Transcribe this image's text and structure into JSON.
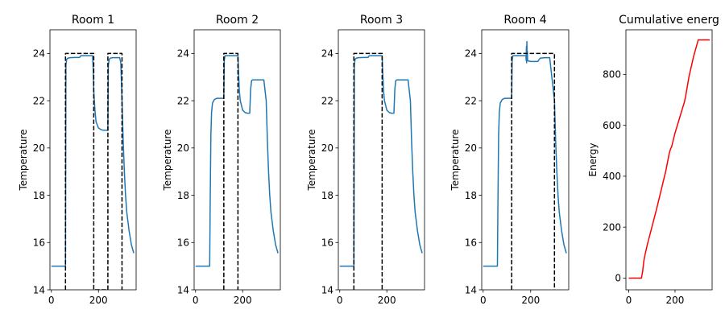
{
  "chart_data": [
    {
      "type": "line",
      "title": "Room 1",
      "xlabel": "",
      "ylabel": "Temperature",
      "xlim": [
        -6,
        360
      ],
      "ylim": [
        14,
        25
      ],
      "xticks": [
        0,
        200
      ],
      "yticks": [
        14,
        16,
        18,
        20,
        22,
        24
      ],
      "grid": false,
      "series": [
        {
          "role": "temperature",
          "color": "#1f77b4",
          "style": "solid",
          "x": [
            0,
            60,
            62,
            65,
            70,
            80,
            100,
            120,
            125,
            175,
            178,
            180,
            185,
            190,
            200,
            210,
            220,
            240,
            242,
            246,
            250,
            260,
            270,
            280,
            290,
            295,
            300,
            305,
            310,
            315,
            320,
            330,
            340,
            350
          ],
          "y": [
            15,
            15,
            23.5,
            23.75,
            23.8,
            23.82,
            23.83,
            23.83,
            23.9,
            23.9,
            23.3,
            22.4,
            21.6,
            21.1,
            20.85,
            20.78,
            20.75,
            20.75,
            23.5,
            23.75,
            23.8,
            23.82,
            23.82,
            23.82,
            23.82,
            23.6,
            22.0,
            20.3,
            19.0,
            18.0,
            17.3,
            16.5,
            15.9,
            15.55
          ]
        },
        {
          "role": "setpoint",
          "color": "#000000",
          "style": "dashed",
          "x": [
            60,
            60,
            180,
            180,
            240,
            240,
            300,
            300
          ],
          "y": [
            14,
            24,
            24,
            14,
            14,
            24,
            24,
            14
          ]
        }
      ]
    },
    {
      "type": "line",
      "title": "Room 2",
      "xlabel": "",
      "ylabel": "Temperature",
      "xlim": [
        -6,
        360
      ],
      "ylim": [
        14,
        25
      ],
      "xticks": [
        0,
        200
      ],
      "yticks": [
        14,
        16,
        18,
        20,
        22,
        24
      ],
      "grid": false,
      "series": [
        {
          "role": "temperature",
          "color": "#1f77b4",
          "style": "solid",
          "x": [
            0,
            60,
            62,
            65,
            68,
            72,
            80,
            90,
            100,
            120,
            122,
            125,
            180,
            183,
            186,
            190,
            200,
            210,
            220,
            230,
            234,
            238,
            242,
            250,
            260,
            270,
            280,
            290,
            300,
            305,
            310,
            315,
            320,
            330,
            340,
            350
          ],
          "y": [
            15,
            15,
            17.5,
            20.5,
            21.5,
            21.9,
            22.05,
            22.1,
            22.1,
            22.1,
            23.7,
            23.9,
            23.9,
            23.1,
            22.4,
            22.0,
            21.6,
            21.5,
            21.47,
            21.47,
            22.5,
            22.85,
            22.88,
            22.88,
            22.88,
            22.88,
            22.88,
            22.88,
            22.0,
            20.3,
            19.0,
            18.0,
            17.3,
            16.5,
            15.9,
            15.55
          ]
        },
        {
          "role": "setpoint",
          "color": "#000000",
          "style": "dashed",
          "x": [
            120,
            120,
            180,
            180
          ],
          "y": [
            14,
            24,
            24,
            14
          ]
        }
      ]
    },
    {
      "type": "line",
      "title": "Room 3",
      "xlabel": "",
      "ylabel": "Temperature",
      "xlim": [
        -6,
        360
      ],
      "ylim": [
        14,
        25
      ],
      "xticks": [
        0,
        200
      ],
      "yticks": [
        14,
        16,
        18,
        20,
        22,
        24
      ],
      "grid": false,
      "series": [
        {
          "role": "temperature",
          "color": "#1f77b4",
          "style": "solid",
          "x": [
            0,
            60,
            62,
            65,
            70,
            80,
            100,
            120,
            125,
            180,
            183,
            186,
            190,
            200,
            210,
            220,
            230,
            234,
            238,
            242,
            250,
            260,
            270,
            280,
            290,
            300,
            305,
            310,
            315,
            320,
            330,
            340,
            350
          ],
          "y": [
            15,
            15,
            23.5,
            23.75,
            23.8,
            23.82,
            23.83,
            23.83,
            23.9,
            23.9,
            23.1,
            22.4,
            22.0,
            21.6,
            21.5,
            21.47,
            21.47,
            22.5,
            22.85,
            22.88,
            22.88,
            22.88,
            22.88,
            22.88,
            22.88,
            22.0,
            20.3,
            19.0,
            18.0,
            17.3,
            16.5,
            15.9,
            15.55
          ]
        },
        {
          "role": "setpoint",
          "color": "#000000",
          "style": "dashed",
          "x": [
            60,
            60,
            180,
            180
          ],
          "y": [
            14,
            24,
            24,
            14
          ]
        }
      ]
    },
    {
      "type": "line",
      "title": "Room 4",
      "xlabel": "",
      "ylabel": "Temperature",
      "xlim": [
        -6,
        360
      ],
      "ylim": [
        14,
        25
      ],
      "xticks": [
        0,
        200
      ],
      "yticks": [
        14,
        16,
        18,
        20,
        22,
        24
      ],
      "grid": false,
      "series": [
        {
          "role": "temperature",
          "color": "#1f77b4",
          "style": "solid",
          "x": [
            0,
            60,
            62,
            65,
            68,
            72,
            80,
            90,
            100,
            120,
            122,
            125,
            180,
            181,
            182,
            183,
            184,
            185,
            186,
            187,
            190,
            200,
            220,
            230,
            240,
            260,
            280,
            300,
            305,
            310,
            315,
            320,
            330,
            340,
            350
          ],
          "y": [
            15,
            15,
            17.5,
            20.5,
            21.5,
            21.9,
            22.05,
            22.1,
            22.1,
            22.1,
            23.7,
            23.9,
            23.9,
            23.7,
            24.3,
            23.6,
            24.5,
            23.7,
            24.1,
            23.7,
            23.68,
            23.66,
            23.66,
            23.66,
            23.8,
            23.82,
            23.82,
            22.0,
            20.3,
            19.0,
            18.0,
            17.3,
            16.5,
            15.9,
            15.55
          ]
        },
        {
          "role": "setpoint",
          "color": "#000000",
          "style": "dashed",
          "x": [
            120,
            120,
            300,
            300
          ],
          "y": [
            14,
            24,
            24,
            14
          ]
        }
      ]
    },
    {
      "type": "line",
      "title": "Cumulative energ",
      "xlabel": "",
      "ylabel": "Energy",
      "xlim": [
        -12,
        360
      ],
      "ylim": [
        -46,
        975
      ],
      "xticks": [
        0,
        200
      ],
      "yticks": [
        0,
        200,
        400,
        600,
        800
      ],
      "grid": false,
      "series": [
        {
          "role": "energy",
          "color": "#ff0000",
          "style": "solid",
          "x": [
            0,
            55,
            60,
            65,
            70,
            80,
            100,
            120,
            140,
            160,
            175,
            180,
            182,
            185,
            200,
            220,
            240,
            245,
            260,
            280,
            300,
            350
          ],
          "y": [
            0,
            0,
            25,
            65,
            90,
            130,
            200,
            270,
            345,
            420,
            490,
            505,
            510,
            515,
            570,
            630,
            690,
            710,
            790,
            870,
            935,
            935
          ]
        }
      ]
    }
  ]
}
